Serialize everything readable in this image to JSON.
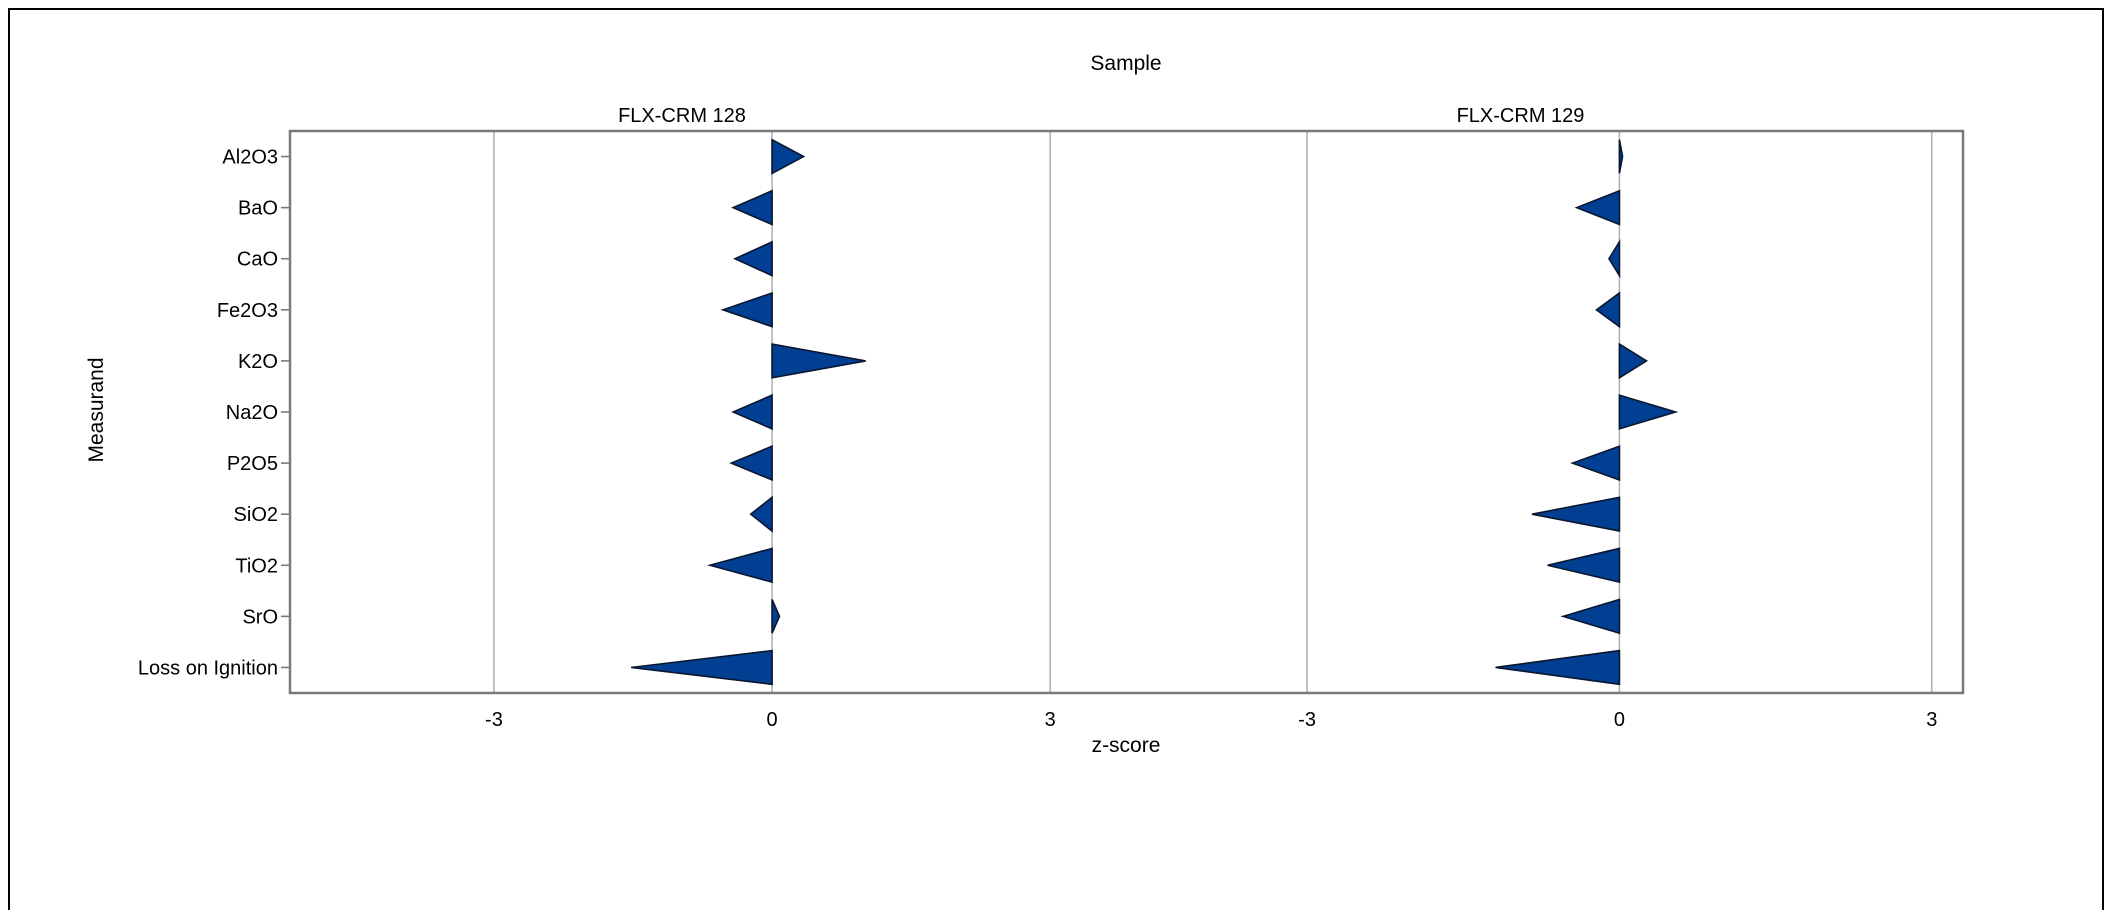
{
  "chart_data": {
    "type": "bar",
    "title": "Sample",
    "xlabel": "z-score",
    "ylabel": "Measurand",
    "categories": [
      "Al2O3",
      "BaO",
      "CaO",
      "Fe2O3",
      "K2O",
      "Na2O",
      "P2O5",
      "SiO2",
      "TiO2",
      "SrO",
      "Loss on Ignition"
    ],
    "xlim": [
      -5.2,
      3.3
    ],
    "xticks": [
      -3,
      0,
      3
    ],
    "grid": true,
    "colors": {
      "mark": "#003f91",
      "stroke": "#0a1630",
      "grid": "#b3b3b3",
      "frame": "#7a7a7a"
    },
    "series": [
      {
        "name": "FLX-CRM 128",
        "values": [
          0.34,
          -0.42,
          -0.4,
          -0.53,
          1.01,
          -0.42,
          -0.44,
          -0.23,
          -0.67,
          0.08,
          -1.52
        ]
      },
      {
        "name": "FLX-CRM 129",
        "values": [
          0.03,
          -0.41,
          -0.1,
          -0.22,
          0.26,
          0.54,
          -0.45,
          -0.84,
          -0.69,
          -0.54,
          -1.19
        ]
      }
    ]
  }
}
